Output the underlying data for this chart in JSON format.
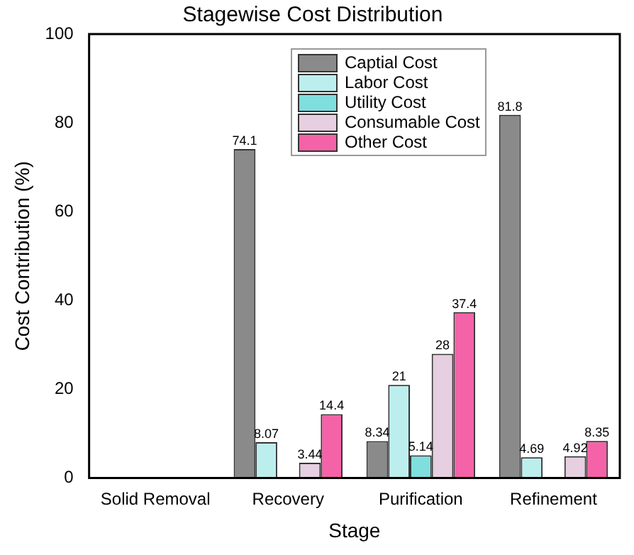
{
  "chart_data": {
    "type": "bar",
    "title": "Stagewise Cost Distribution",
    "xlabel": "Stage",
    "ylabel": "Cost Contribution (%)",
    "categories": [
      "Solid Removal",
      "Recovery",
      "Purification",
      "Refinement"
    ],
    "series": [
      {
        "name": "Captial Cost",
        "color": "#8a8a8a",
        "values": [
          null,
          74.1,
          8.34,
          81.8
        ],
        "value_labels": [
          null,
          "74.1",
          "8.34",
          "81.8"
        ]
      },
      {
        "name": "Labor Cost",
        "color": "#bdeeee",
        "values": [
          null,
          8.07,
          21,
          4.69
        ],
        "value_labels": [
          null,
          "8.07",
          "21",
          "4.69"
        ]
      },
      {
        "name": "Utility Cost",
        "color": "#7fdede",
        "values": [
          null,
          null,
          5.14,
          0
        ],
        "value_labels": [
          null,
          null,
          "5.14",
          null
        ]
      },
      {
        "name": "Consumable Cost",
        "color": "#e6cfe0",
        "values": [
          null,
          3.44,
          28,
          4.92
        ],
        "value_labels": [
          null,
          "3.44",
          "28",
          "4.92"
        ]
      },
      {
        "name": "Other Cost",
        "color": "#f462a8",
        "values": [
          null,
          14.4,
          37.4,
          8.35
        ],
        "value_labels": [
          null,
          "14.4",
          "37.4",
          "8.35"
        ]
      }
    ],
    "ylim": [
      0,
      100
    ],
    "yticks": [
      0,
      20,
      40,
      60,
      80,
      100
    ],
    "grid": false,
    "legend": "top"
  }
}
